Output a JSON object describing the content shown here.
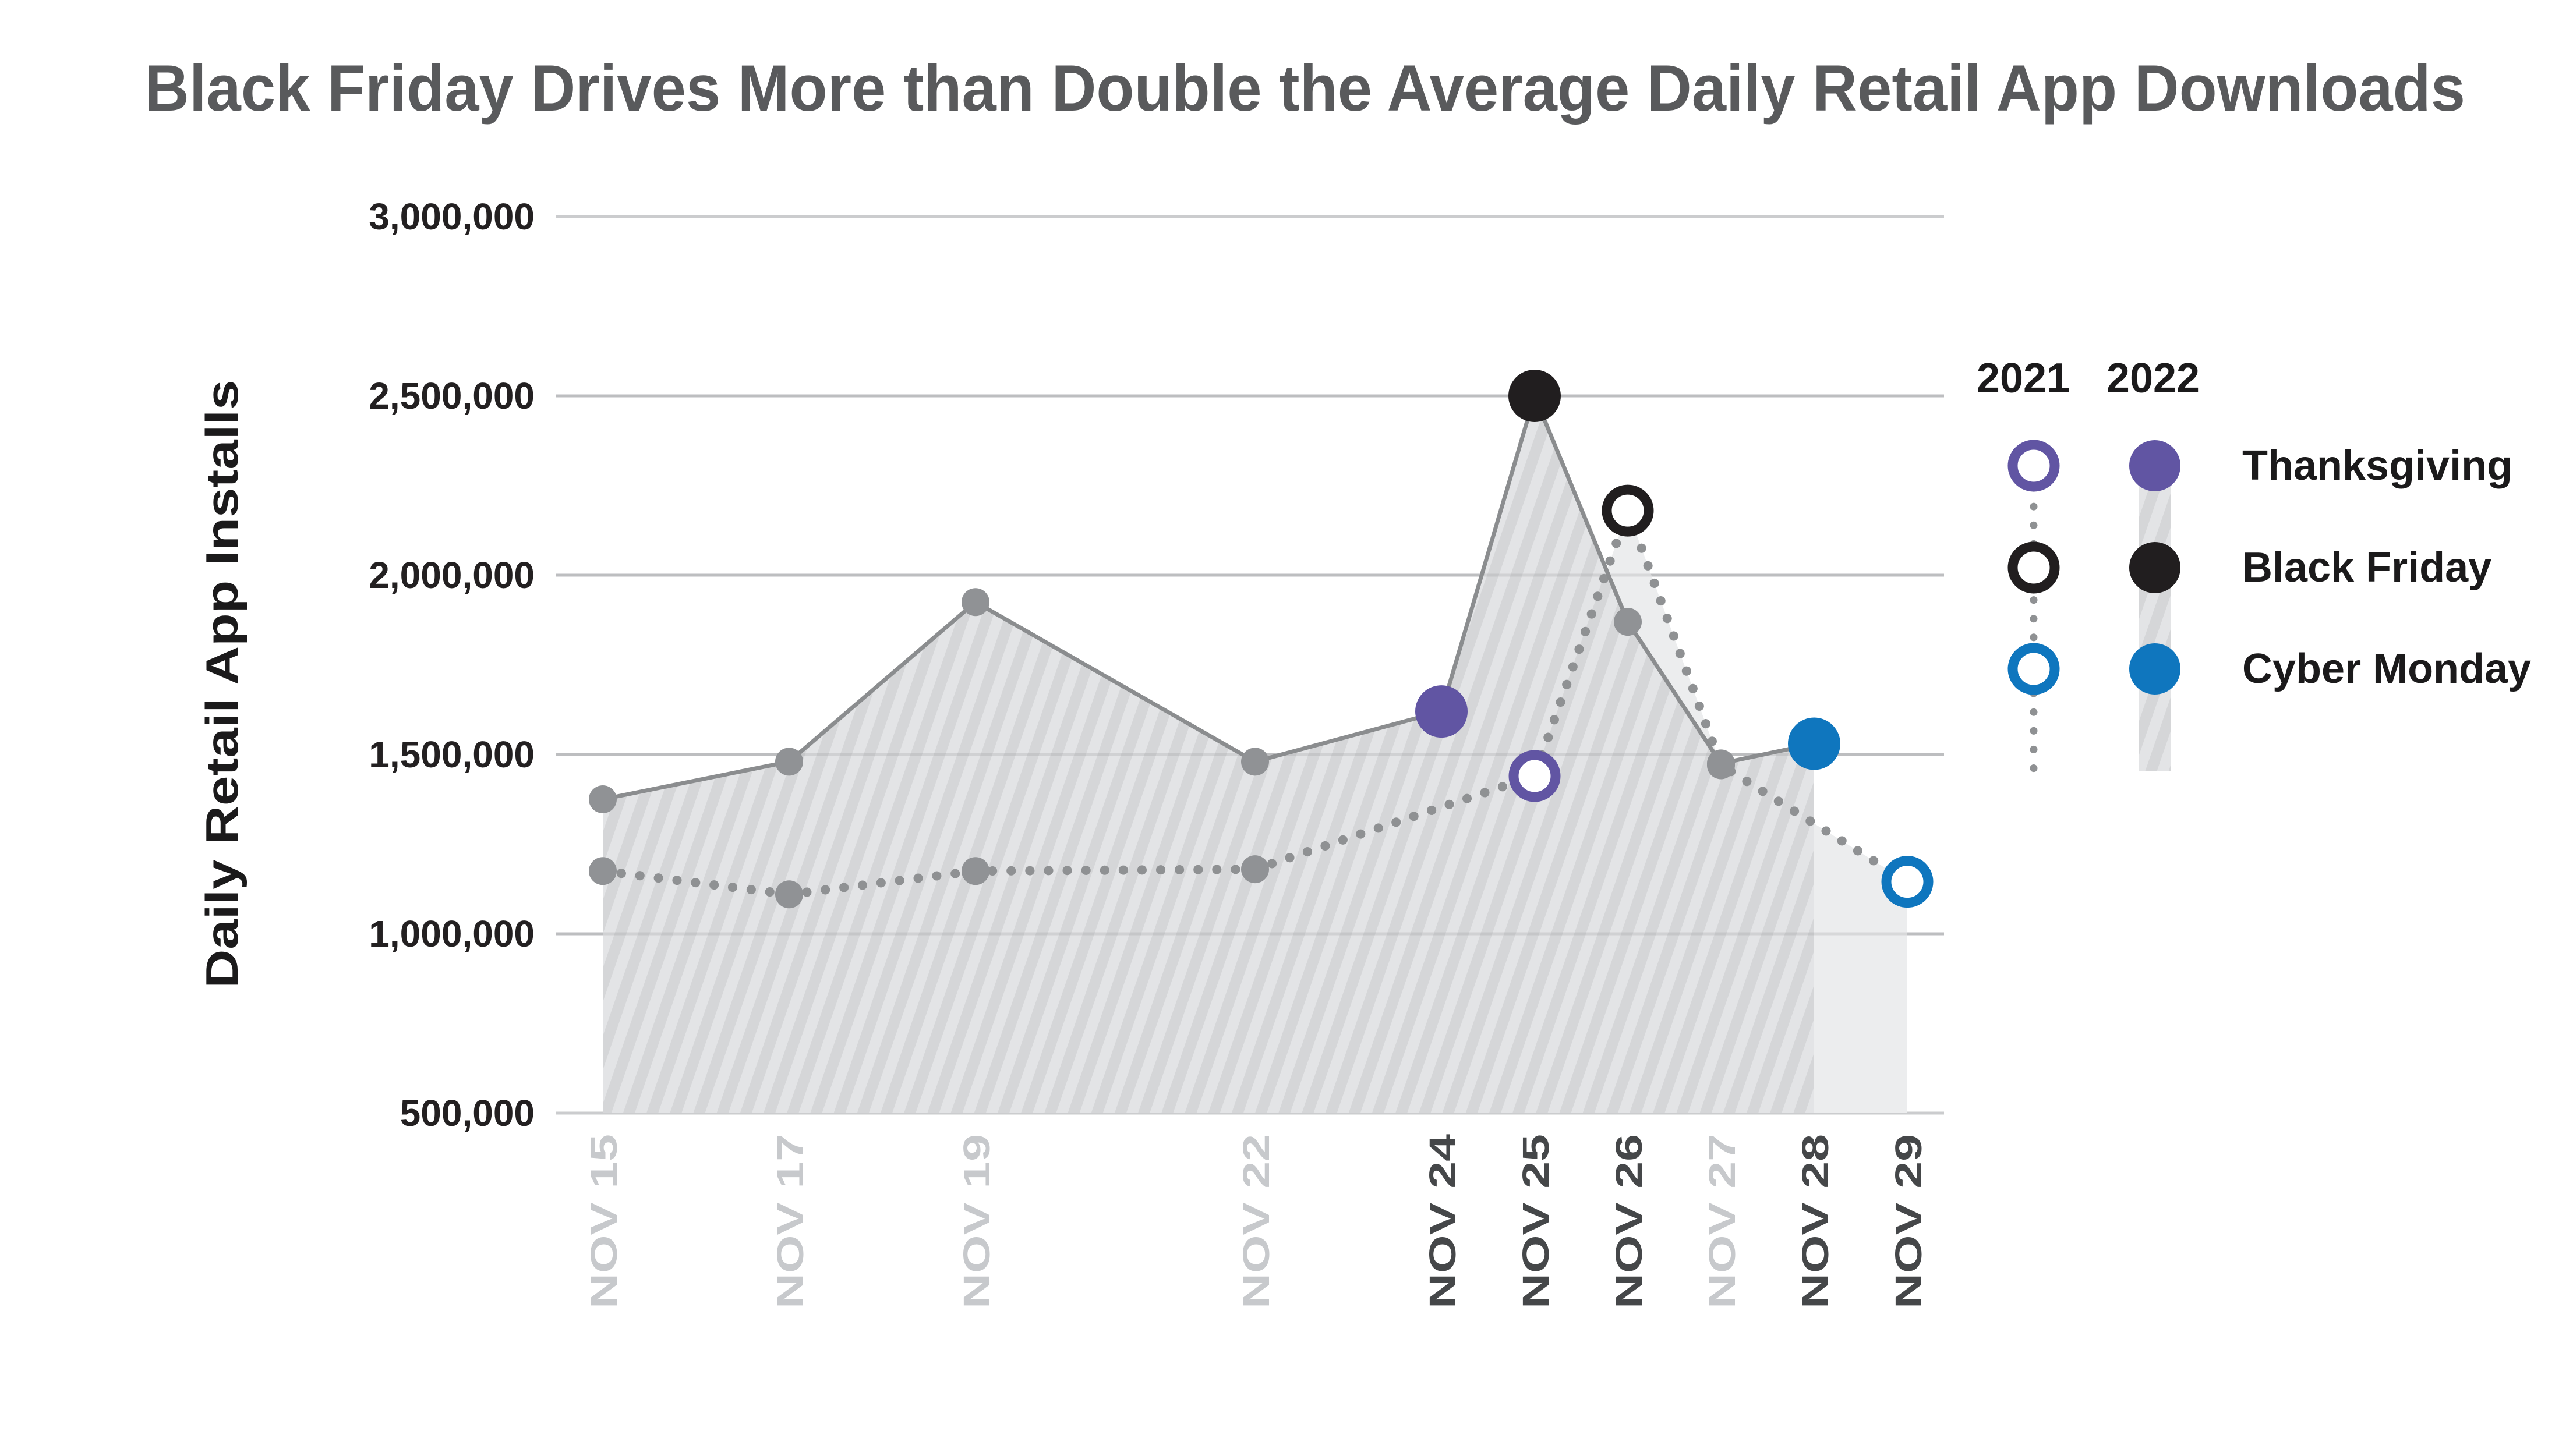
{
  "chart_data": {
    "type": "line",
    "title": "Black Friday Drives More than Double the Average Daily Retail App Downloads",
    "ylabel": "Daily Retail App Installs",
    "y_axis": {
      "min": 500000,
      "max": 3000000,
      "tick_step": 500000,
      "tick_labels": [
        "500,000",
        "1,000,000",
        "1,500,000",
        "2,000,000",
        "2,500,000",
        "3,000,000"
      ],
      "grid": true
    },
    "x_ticks": [
      {
        "day": 15,
        "label": "NOV 15",
        "emphasis": false
      },
      {
        "day": 17,
        "label": "NOV 17",
        "emphasis": false
      },
      {
        "day": 19,
        "label": "NOV 19",
        "emphasis": false
      },
      {
        "day": 22,
        "label": "NOV 22",
        "emphasis": false
      },
      {
        "day": 24,
        "label": "NOV 24",
        "emphasis": true
      },
      {
        "day": 25,
        "label": "NOV 25",
        "emphasis": true
      },
      {
        "day": 26,
        "label": "NOV 26",
        "emphasis": true
      },
      {
        "day": 27,
        "label": "NOV 27",
        "emphasis": false
      },
      {
        "day": 28,
        "label": "NOV 28",
        "emphasis": true
      },
      {
        "day": 29,
        "label": "NOV 29",
        "emphasis": true
      }
    ],
    "series": [
      {
        "name": "2021",
        "line_style": "dotted",
        "area_style": "plain",
        "marker_fill": "open",
        "points": [
          {
            "day": 15,
            "value": 1175000,
            "marker": "dot"
          },
          {
            "day": 17,
            "value": 1110000,
            "marker": "dot"
          },
          {
            "day": 19,
            "value": 1175000,
            "marker": "dot"
          },
          {
            "day": 22,
            "value": 1180000,
            "marker": "dot"
          },
          {
            "day": 25,
            "value": 1440000,
            "marker": "thanksgiving"
          },
          {
            "day": 26,
            "value": 2180000,
            "marker": "black-friday"
          },
          {
            "day": 27,
            "value": 1470000,
            "marker": "dot"
          },
          {
            "day": 29,
            "value": 1145000,
            "marker": "cyber-monday"
          }
        ]
      },
      {
        "name": "2022",
        "line_style": "solid",
        "area_style": "hatched",
        "marker_fill": "filled",
        "points": [
          {
            "day": 15,
            "value": 1375000,
            "marker": "dot"
          },
          {
            "day": 17,
            "value": 1480000,
            "marker": "dot"
          },
          {
            "day": 19,
            "value": 1925000,
            "marker": "dot"
          },
          {
            "day": 22,
            "value": 1480000,
            "marker": "dot"
          },
          {
            "day": 24,
            "value": 1620000,
            "marker": "thanksgiving"
          },
          {
            "day": 25,
            "value": 2500000,
            "marker": "black-friday"
          },
          {
            "day": 26,
            "value": 1870000,
            "marker": "dot"
          },
          {
            "day": 27,
            "value": 1475000,
            "marker": "dot"
          },
          {
            "day": 28,
            "value": 1530000,
            "marker": "cyber-monday"
          }
        ]
      }
    ],
    "legend": {
      "position": "right",
      "columns": [
        "2021",
        "2022"
      ],
      "rows": [
        {
          "key": "thanksgiving",
          "label": "Thanksgiving",
          "color": "#6155A3"
        },
        {
          "key": "black-friday",
          "label": "Black Friday",
          "color": "#211E1F"
        },
        {
          "key": "cyber-monday",
          "label": "Cyber Monday",
          "color": "#0F76BE"
        }
      ]
    },
    "colors": {
      "title": "#595A5C",
      "grid": "#CBCCCE",
      "solid_line": "#8B8D8F",
      "dotted_line": "#8F9193",
      "marker_dot": "#909295",
      "area_plain": "#ECEDEE",
      "hatch_dark": "#D5D6D8",
      "hatch_light": "#E3E4E6",
      "x_tick_emphasis": "#454749",
      "x_tick_muted": "#C7C9CC",
      "y_tick": "#232021",
      "legend_text": "#1B1A1B"
    }
  }
}
